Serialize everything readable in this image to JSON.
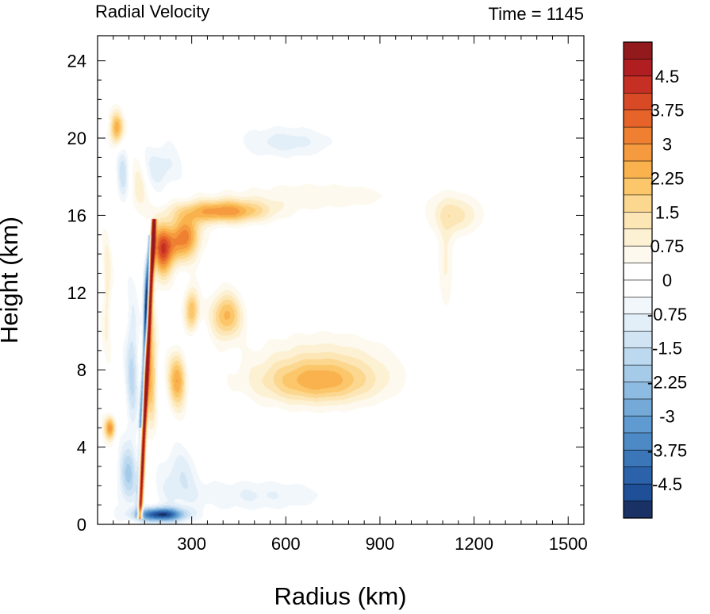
{
  "chart_data": {
    "type": "heatmap",
    "title_left": "Radial Velocity",
    "title_right": "Time = 1145",
    "xlabel": "Radius (km)",
    "ylabel": "Height (km)",
    "xlim": [
      0,
      1550
    ],
    "ylim": [
      0,
      25.3
    ],
    "x_ticks": [
      300,
      600,
      900,
      1200,
      1500
    ],
    "x_tick_labels": [
      "300",
      "600",
      "900",
      "1200",
      "1500"
    ],
    "y_ticks": [
      0,
      4,
      8,
      12,
      16,
      20,
      24
    ],
    "y_tick_labels": [
      "0",
      "4",
      "8",
      "12",
      "16",
      "20",
      "24"
    ],
    "colorbar": {
      "min": -5.25,
      "max": 5.25,
      "levels": 28,
      "tick_values": [
        4.5,
        3.75,
        3,
        2.25,
        1.5,
        0.75,
        0,
        -0.75,
        -1.5,
        -2.25,
        -3,
        -3.75,
        -4.5
      ],
      "tick_labels": [
        "4.5",
        "3.75",
        "3",
        "2.25",
        "1.5",
        "0.75",
        "0",
        "-0.75",
        "-1.5",
        "-2.25",
        "-3",
        "-3.75",
        "-4.5"
      ],
      "colors": [
        "#1a3166",
        "#1f4f97",
        "#2b62aa",
        "#3a76b8",
        "#4d89c4",
        "#5f9ad0",
        "#75aad8",
        "#8dbbe1",
        "#a5cbe8",
        "#bcd9ef",
        "#d0e4f4",
        "#e2eef8",
        "#f2f7fc",
        "#ffffff",
        "#ffffff",
        "#fdf9ee",
        "#fdf1d4",
        "#fde6b6",
        "#fcd78f",
        "#fbc76a",
        "#f9b24d",
        "#f59a3e",
        "#ef8032",
        "#e6642a",
        "#d84a26",
        "#c63024",
        "#b01e22",
        "#931a1c"
      ]
    },
    "features": [
      {
        "r": 245,
        "z": 14.5,
        "w": 0.5,
        "sr": 70,
        "sz": 1.1
      },
      {
        "r": 205,
        "z": 14.0,
        "w": 0.45,
        "sr": 30,
        "sz": 1.5
      },
      {
        "r": 290,
        "z": 15.2,
        "w": 0.3,
        "sr": 40,
        "sz": 0.9
      },
      {
        "r": 400,
        "z": 16.2,
        "w": 0.55,
        "sr": 140,
        "sz": 0.6
      },
      {
        "r": 170,
        "z": 8.0,
        "w": 0.45,
        "sr": 18,
        "sz": 3.0
      },
      {
        "r": 255,
        "z": 7.5,
        "w": 0.5,
        "sr": 30,
        "sz": 1.5
      },
      {
        "r": 300,
        "z": 11.0,
        "w": 0.5,
        "sr": 25,
        "sz": 1.2
      },
      {
        "r": 410,
        "z": 10.8,
        "w": 0.45,
        "sr": 50,
        "sz": 1.2
      },
      {
        "r": 700,
        "z": 7.3,
        "w": 0.35,
        "sr": 190,
        "sz": 1.1
      },
      {
        "r": 720,
        "z": 8.3,
        "w": 0.2,
        "sr": 220,
        "sz": 1.6
      },
      {
        "r": 1140,
        "z": 16.0,
        "w": 0.25,
        "sr": 80,
        "sz": 1.0
      },
      {
        "r": 1110,
        "z": 13.5,
        "w": 0.15,
        "sr": 25,
        "sz": 2.5
      },
      {
        "r": 700,
        "z": 17.0,
        "w": 0.12,
        "sr": 300,
        "sz": 0.8
      },
      {
        "r": 40,
        "z": 5.0,
        "w": 0.55,
        "sr": 18,
        "sz": 0.6
      },
      {
        "r": 60,
        "z": 20.5,
        "w": 0.5,
        "sr": 22,
        "sz": 0.9
      },
      {
        "r": 130,
        "z": 17.5,
        "w": 0.2,
        "sr": 30,
        "sz": 1.5
      },
      {
        "r": 30,
        "z": 12.0,
        "w": 0.2,
        "sr": 15,
        "sz": 3.0
      },
      {
        "r": 200,
        "z": 0.5,
        "w": -0.95,
        "sr": 75,
        "sz": 0.35
      },
      {
        "r": 155,
        "z": 11.5,
        "w": -0.55,
        "sr": 10,
        "sz": 2.2
      },
      {
        "r": 110,
        "z": 8.0,
        "w": -0.3,
        "sr": 20,
        "sz": 3.5
      },
      {
        "r": 95,
        "z": 2.5,
        "w": -0.35,
        "sr": 30,
        "sz": 1.5
      },
      {
        "r": 200,
        "z": 18.5,
        "w": -0.2,
        "sr": 60,
        "sz": 1.2
      },
      {
        "r": 80,
        "z": 18.0,
        "w": -0.25,
        "sr": 20,
        "sz": 1.5
      },
      {
        "r": 600,
        "z": 19.8,
        "w": -0.18,
        "sr": 150,
        "sz": 0.8
      },
      {
        "r": 500,
        "z": 1.5,
        "w": -0.15,
        "sr": 250,
        "sz": 0.8
      },
      {
        "r": 260,
        "z": 2.5,
        "w": -0.2,
        "sr": 60,
        "sz": 1.5
      },
      {
        "r": 300,
        "z": 9.5,
        "w": -0.12,
        "sr": 40,
        "sz": 2.0
      }
    ],
    "jet": {
      "r0": 135,
      "z0": 0.3,
      "r1": 180,
      "z1": 15.8,
      "w": 1.0,
      "width": 7
    }
  }
}
